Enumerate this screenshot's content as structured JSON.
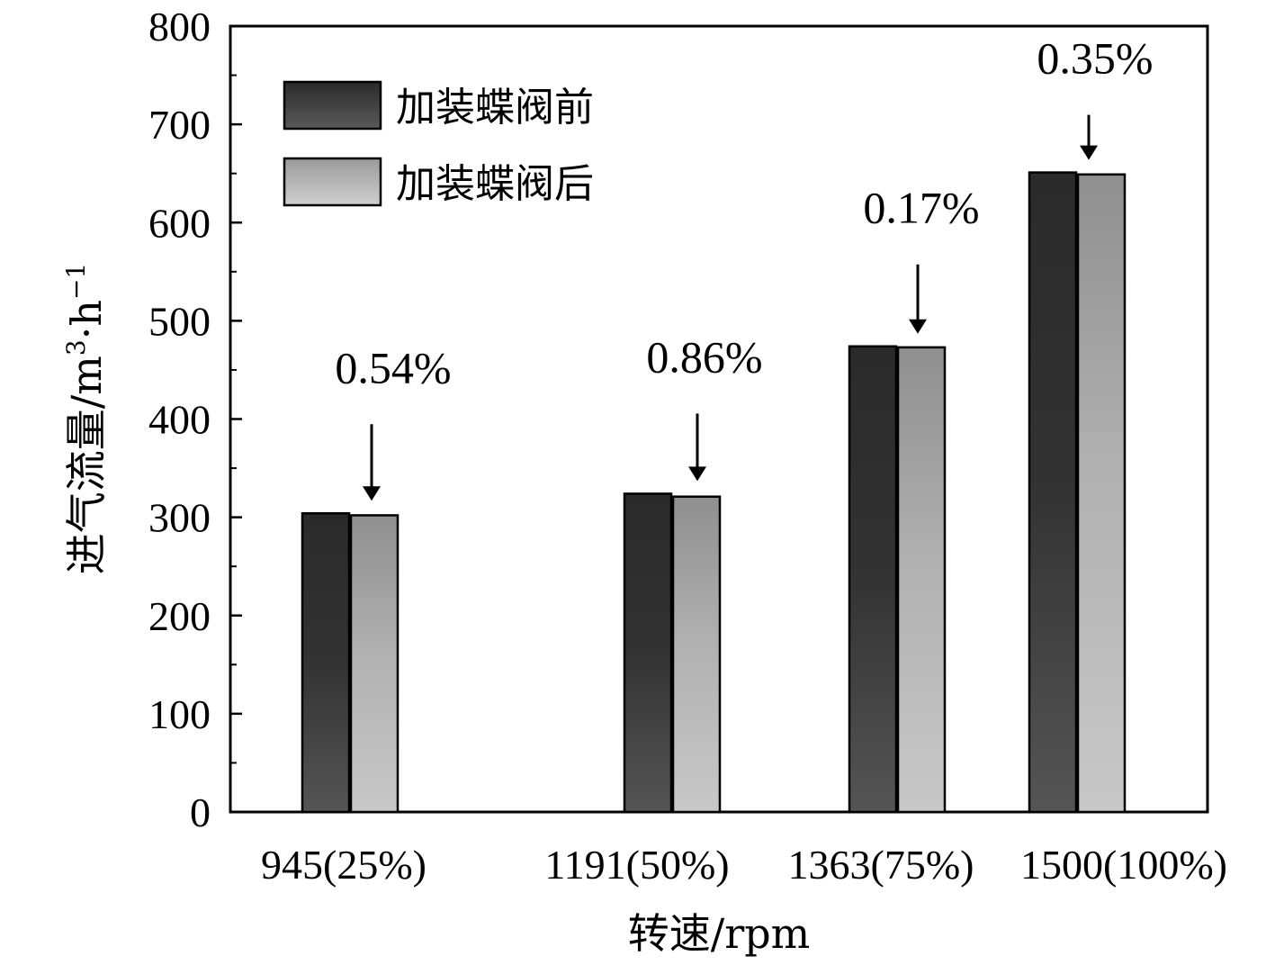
{
  "chart_data": {
    "type": "bar",
    "categories": [
      "945(25%)",
      "1191(50%)",
      "1363(75%)",
      "1500(100%)"
    ],
    "series": [
      {
        "name": "加装蝶阀前",
        "values": [
          304,
          324,
          474,
          651
        ],
        "color": "#2e2e2e"
      },
      {
        "name": "加装蝶阀后",
        "values": [
          302,
          321,
          473,
          649
        ],
        "color": "#a8a8a8"
      }
    ],
    "annotations": [
      "0.54%",
      "0.86%",
      "0.17%",
      "0.35%"
    ],
    "xlabel": "转速/rpm",
    "ylabel_main": "进气流量/m",
    "ylabel_sup1": "3",
    "ylabel_mid": "·h",
    "ylabel_sup2": "−1",
    "ylim": [
      0,
      800
    ],
    "yticks": [
      0,
      100,
      200,
      300,
      400,
      500,
      600,
      700,
      800
    ],
    "grid": false,
    "legend_position": "top-left"
  }
}
